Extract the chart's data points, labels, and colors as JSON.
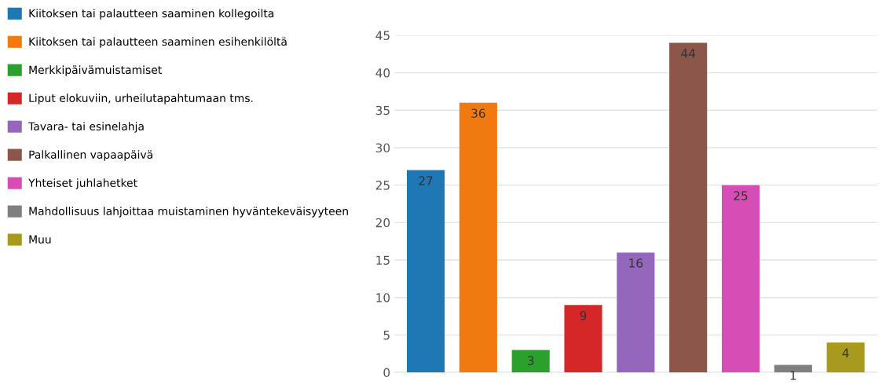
{
  "chart_data": {
    "type": "bar",
    "categories": [
      null,
      null,
      null,
      null,
      null,
      null,
      null,
      null,
      null
    ],
    "series": [
      {
        "name": "Kiitoksen tai palautteen saaminen kollegoilta",
        "color": "#1f77b4",
        "values": [
          27,
          null,
          null,
          null,
          null,
          null,
          null,
          null,
          null
        ]
      },
      {
        "name": "Kiitoksen tai palautteen saaminen esihenkilöltä",
        "color": "#f07a10",
        "values": [
          null,
          36,
          null,
          null,
          null,
          null,
          null,
          null,
          null
        ]
      },
      {
        "name": "Merkkipäivämuistamiset",
        "color": "#2ca02c",
        "values": [
          null,
          null,
          3,
          null,
          null,
          null,
          null,
          null,
          null
        ]
      },
      {
        "name": "Liput elokuviin, urheilutapahtumaan tms.",
        "color": "#d62728",
        "values": [
          null,
          null,
          null,
          9,
          null,
          null,
          null,
          null,
          null
        ]
      },
      {
        "name": "Tavara- tai esinelahja",
        "color": "#9467bd",
        "values": [
          null,
          null,
          null,
          null,
          16,
          null,
          null,
          null,
          null
        ]
      },
      {
        "name": "Palkallinen vapaapäivä",
        "color": "#8c564b",
        "values": [
          null,
          null,
          null,
          null,
          null,
          44,
          null,
          null,
          null
        ]
      },
      {
        "name": "Yhteiset juhlahetket",
        "color": "#d54db5",
        "values": [
          null,
          null,
          null,
          null,
          null,
          null,
          25,
          null,
          null
        ]
      },
      {
        "name": "Mahdollisuus lahjoittaa muistaminen hyväntekeväisyyteen",
        "color": "#7f7f7f",
        "values": [
          null,
          null,
          null,
          null,
          null,
          null,
          null,
          1,
          null
        ]
      },
      {
        "name": "Muu",
        "color": "#a89a1f",
        "values": [
          null,
          null,
          null,
          null,
          null,
          null,
          null,
          null,
          4
        ]
      }
    ],
    "ylim": [
      0,
      45
    ],
    "yticks": [
      0,
      5,
      10,
      15,
      20,
      25,
      30,
      35,
      40,
      45
    ],
    "grid": "y",
    "legend": "left",
    "tick_labels": "y",
    "data_labels": true
  }
}
